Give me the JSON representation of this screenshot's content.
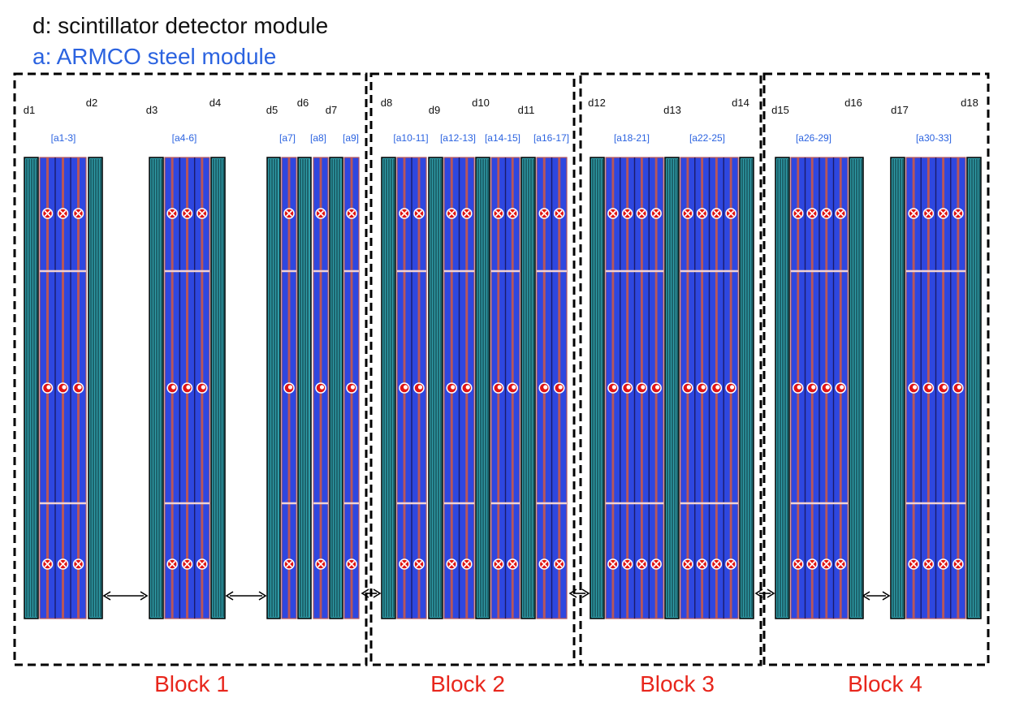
{
  "legend": {
    "detector": "d: scintillator detector module",
    "steel": "a: ARMCO steel module"
  },
  "colors": {
    "legend_detector_text": "#111111",
    "legend_steel_text": "#2b63e0",
    "detector_fill": "#2f9ca8",
    "detector_stripe": "#0a2a30",
    "steel_fill": "#2e47e0",
    "steel_stripe": "#b8565a",
    "marker_fill": "#e01414",
    "block_label": "#e8261c",
    "module_label": "#2b63e0",
    "detector_label": "#111111"
  },
  "blocks": [
    {
      "label": "Block 1"
    },
    {
      "label": "Block 2"
    },
    {
      "label": "Block 3"
    },
    {
      "label": "Block 4"
    }
  ],
  "detectors": [
    "d1",
    "d2",
    "d3",
    "d4",
    "d5",
    "d6",
    "d7",
    "d8",
    "d9",
    "d10",
    "d11",
    "d12",
    "d13",
    "d14",
    "d15",
    "d16",
    "d17",
    "d18"
  ],
  "steel_groups": [
    {
      "label": "[a1-3]",
      "plates": 3
    },
    {
      "label": "[a4-6]",
      "plates": 3
    },
    {
      "label": "[a7]",
      "plates": 1
    },
    {
      "label": "[a8]",
      "plates": 1
    },
    {
      "label": "[a9]",
      "plates": 1
    },
    {
      "label": "[a10-11]",
      "plates": 2
    },
    {
      "label": "[a12-13]",
      "plates": 2
    },
    {
      "label": "[a14-15]",
      "plates": 2
    },
    {
      "label": "[a16-17]",
      "plates": 2
    },
    {
      "label": "[a18-21]",
      "plates": 4
    },
    {
      "label": "[a22-25]",
      "plates": 4
    },
    {
      "label": "[a26-29]",
      "plates": 4
    },
    {
      "label": "[a30-33]",
      "plates": 4
    }
  ],
  "marker_rows": [
    {
      "symbol": "into-page-icon"
    },
    {
      "symbol": "out-of-page-icon"
    },
    {
      "symbol": "into-page-icon"
    }
  ],
  "gaps": [
    "double-arrow-icon",
    "double-arrow-icon",
    "double-arrow-icon",
    "double-arrow-icon",
    "double-arrow-icon",
    "double-arrow-icon"
  ]
}
